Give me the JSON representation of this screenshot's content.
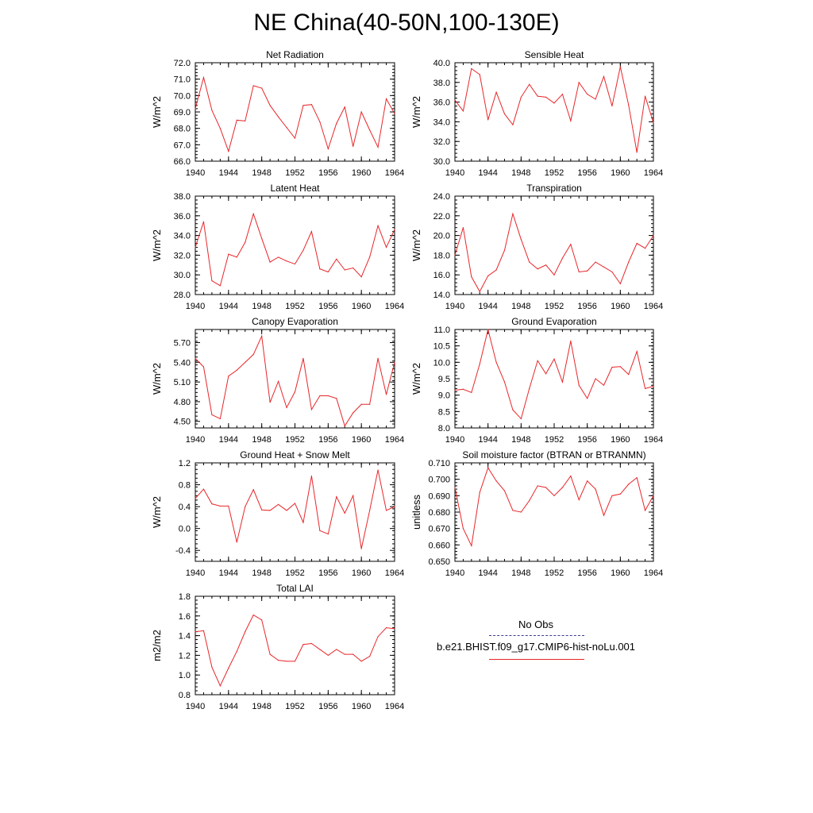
{
  "title": "NE China(40-50N,100-130E)",
  "colors": {
    "model": "#e8262a",
    "obs": "#3b3b8f",
    "axis": "#000000"
  },
  "legend": {
    "obs_label": "No Obs",
    "model_label": "b.e21.BHIST.f09_g17.CMIP6-hist-noLu.001"
  },
  "chart_data": [
    {
      "type": "line",
      "title": "Net Radiation",
      "ylabel": "W/m^2",
      "xlabel": "",
      "ylim": [
        66.0,
        72.0
      ],
      "yticks": [
        66.0,
        67.0,
        68.0,
        69.0,
        70.0,
        71.0,
        72.0
      ],
      "ydec": 1,
      "xlim": [
        1940,
        1964
      ],
      "xticks": [
        1940,
        1944,
        1948,
        1952,
        1956,
        1960,
        1964
      ],
      "x": [
        1940,
        1941,
        1942,
        1943,
        1944,
        1945,
        1946,
        1947,
        1948,
        1949,
        1950,
        1951,
        1952,
        1953,
        1954,
        1955,
        1956,
        1957,
        1958,
        1959,
        1960,
        1961,
        1962,
        1963,
        1964
      ],
      "series": [
        {
          "values": [
            69.2,
            71.1,
            69.1,
            68.0,
            66.6,
            68.5,
            68.45,
            70.6,
            70.45,
            69.4,
            68.7,
            68.05,
            67.4,
            69.4,
            69.45,
            68.4,
            66.75,
            68.3,
            69.3,
            66.9,
            69.0,
            67.9,
            66.85,
            69.8,
            68.9
          ]
        }
      ]
    },
    {
      "type": "line",
      "title": "Sensible Heat",
      "ylabel": "W/m^2",
      "xlabel": "",
      "ylim": [
        30.0,
        40.0
      ],
      "yticks": [
        30.0,
        32.0,
        34.0,
        36.0,
        38.0,
        40.0
      ],
      "ydec": 1,
      "xlim": [
        1940,
        1964
      ],
      "xticks": [
        1940,
        1944,
        1948,
        1952,
        1956,
        1960,
        1964
      ],
      "x": [
        1940,
        1941,
        1942,
        1943,
        1944,
        1945,
        1946,
        1947,
        1948,
        1949,
        1950,
        1951,
        1952,
        1953,
        1954,
        1955,
        1956,
        1957,
        1958,
        1959,
        1960,
        1961,
        1962,
        1963,
        1964
      ],
      "series": [
        {
          "values": [
            36.2,
            35.1,
            39.4,
            38.8,
            34.2,
            37.0,
            34.8,
            33.7,
            36.5,
            37.8,
            36.6,
            36.5,
            35.9,
            36.8,
            34.1,
            38.0,
            36.8,
            36.3,
            38.6,
            35.6,
            39.6,
            35.7,
            30.9,
            36.6,
            33.9
          ]
        }
      ]
    },
    {
      "type": "line",
      "title": "Latent Heat",
      "ylabel": "W/m^2",
      "xlabel": "",
      "ylim": [
        28.0,
        38.0
      ],
      "yticks": [
        28.0,
        30.0,
        32.0,
        34.0,
        36.0,
        38.0
      ],
      "ydec": 1,
      "xlim": [
        1940,
        1964
      ],
      "xticks": [
        1940,
        1944,
        1948,
        1952,
        1956,
        1960,
        1964
      ],
      "x": [
        1940,
        1941,
        1942,
        1943,
        1944,
        1945,
        1946,
        1947,
        1948,
        1949,
        1950,
        1951,
        1952,
        1953,
        1954,
        1955,
        1956,
        1957,
        1958,
        1959,
        1960,
        1961,
        1962,
        1963,
        1964
      ],
      "series": [
        {
          "values": [
            32.8,
            35.4,
            29.4,
            28.9,
            32.1,
            31.8,
            33.3,
            36.2,
            33.7,
            31.3,
            31.8,
            31.4,
            31.1,
            32.5,
            34.4,
            30.6,
            30.3,
            31.6,
            30.5,
            30.7,
            29.8,
            31.8,
            35.0,
            32.8,
            34.6
          ]
        }
      ]
    },
    {
      "type": "line",
      "title": "Transpiration",
      "ylabel": "W/m^2",
      "xlabel": "",
      "ylim": [
        14.0,
        24.0
      ],
      "yticks": [
        14.0,
        16.0,
        18.0,
        20.0,
        22.0,
        24.0
      ],
      "ydec": 1,
      "xlim": [
        1940,
        1964
      ],
      "xticks": [
        1940,
        1944,
        1948,
        1952,
        1956,
        1960,
        1964
      ],
      "x": [
        1940,
        1941,
        1942,
        1943,
        1944,
        1945,
        1946,
        1947,
        1948,
        1949,
        1950,
        1951,
        1952,
        1953,
        1954,
        1955,
        1956,
        1957,
        1958,
        1959,
        1960,
        1961,
        1962,
        1963,
        1964
      ],
      "series": [
        {
          "values": [
            18.0,
            20.8,
            15.8,
            14.3,
            15.9,
            16.5,
            18.5,
            22.2,
            19.6,
            17.3,
            16.6,
            17.0,
            16.0,
            17.7,
            19.1,
            16.3,
            16.4,
            17.3,
            16.8,
            16.3,
            15.1,
            17.3,
            19.2,
            18.7,
            20.0
          ]
        }
      ]
    },
    {
      "type": "line",
      "title": "Canopy Evaporation",
      "ylabel": "W/m^2",
      "xlabel": "",
      "ylim": [
        4.4,
        5.9
      ],
      "yticks": [
        4.5,
        4.8,
        5.1,
        5.4,
        5.7
      ],
      "ydec": 2,
      "xlim": [
        1940,
        1964
      ],
      "xticks": [
        1940,
        1944,
        1948,
        1952,
        1956,
        1960,
        1964
      ],
      "x": [
        1940,
        1941,
        1942,
        1943,
        1944,
        1945,
        1946,
        1947,
        1948,
        1949,
        1950,
        1951,
        1952,
        1953,
        1954,
        1955,
        1956,
        1957,
        1958,
        1959,
        1960,
        1961,
        1962,
        1963,
        1964
      ],
      "series": [
        {
          "values": [
            5.46,
            5.33,
            4.6,
            4.54,
            5.19,
            5.28,
            5.4,
            5.52,
            5.8,
            4.79,
            5.11,
            4.71,
            4.95,
            5.46,
            4.68,
            4.89,
            4.89,
            4.85,
            4.43,
            4.63,
            4.76,
            4.76,
            5.46,
            4.91,
            5.4
          ]
        }
      ]
    },
    {
      "type": "line",
      "title": "Ground Evaporation",
      "ylabel": "W/m^2",
      "xlabel": "",
      "ylim": [
        8.0,
        11.0
      ],
      "yticks": [
        8.0,
        8.5,
        9.0,
        9.5,
        10.0,
        10.5,
        11.0
      ],
      "ydec": 1,
      "xlim": [
        1940,
        1964
      ],
      "xticks": [
        1940,
        1944,
        1948,
        1952,
        1956,
        1960,
        1964
      ],
      "x": [
        1940,
        1941,
        1942,
        1943,
        1944,
        1945,
        1946,
        1947,
        1948,
        1949,
        1950,
        1951,
        1952,
        1953,
        1954,
        1955,
        1956,
        1957,
        1958,
        1959,
        1960,
        1961,
        1962,
        1963,
        1964
      ],
      "series": [
        {
          "values": [
            9.15,
            9.18,
            9.08,
            9.95,
            11.0,
            10.0,
            9.4,
            8.55,
            8.28,
            9.2,
            10.05,
            9.65,
            10.1,
            9.4,
            10.65,
            9.3,
            8.9,
            9.5,
            9.3,
            9.85,
            9.87,
            9.63,
            10.33,
            9.2,
            9.27
          ]
        }
      ]
    },
    {
      "type": "line",
      "title": "Ground Heat + Snow Melt",
      "ylabel": "W/m^2",
      "xlabel": "",
      "ylim": [
        -0.6,
        1.2
      ],
      "yticks": [
        -0.4,
        0.0,
        0.4,
        0.8,
        1.2
      ],
      "ydec": 1,
      "xlim": [
        1940,
        1964
      ],
      "xticks": [
        1940,
        1944,
        1948,
        1952,
        1956,
        1960,
        1964
      ],
      "x": [
        1940,
        1941,
        1942,
        1943,
        1944,
        1945,
        1946,
        1947,
        1948,
        1949,
        1950,
        1951,
        1952,
        1953,
        1954,
        1955,
        1956,
        1957,
        1958,
        1959,
        1960,
        1961,
        1962,
        1963,
        1964
      ],
      "series": [
        {
          "values": [
            0.55,
            0.72,
            0.45,
            0.41,
            0.41,
            -0.25,
            0.4,
            0.71,
            0.34,
            0.33,
            0.44,
            0.33,
            0.46,
            0.11,
            0.96,
            -0.04,
            -0.1,
            0.58,
            0.28,
            0.6,
            -0.37,
            0.33,
            1.07,
            0.33,
            0.4
          ]
        }
      ]
    },
    {
      "type": "line",
      "title": "Soil moisture factor (BTRAN or BTRANMN)",
      "ylabel": "unitless",
      "xlabel": "",
      "ylim": [
        0.65,
        0.71
      ],
      "yticks": [
        0.65,
        0.66,
        0.67,
        0.68,
        0.69,
        0.7,
        0.71
      ],
      "ydec": 3,
      "xlim": [
        1940,
        1964
      ],
      "xticks": [
        1940,
        1944,
        1948,
        1952,
        1956,
        1960,
        1964
      ],
      "x": [
        1940,
        1941,
        1942,
        1943,
        1944,
        1945,
        1946,
        1947,
        1948,
        1949,
        1950,
        1951,
        1952,
        1953,
        1954,
        1955,
        1956,
        1957,
        1958,
        1959,
        1960,
        1961,
        1962,
        1963,
        1964
      ],
      "series": [
        {
          "values": [
            0.695,
            0.67,
            0.6595,
            0.692,
            0.707,
            0.699,
            0.693,
            0.681,
            0.68,
            0.687,
            0.696,
            0.695,
            0.69,
            0.695,
            0.702,
            0.6875,
            0.699,
            0.694,
            0.678,
            0.69,
            0.691,
            0.697,
            0.701,
            0.681,
            0.69
          ]
        }
      ]
    },
    {
      "type": "line",
      "title": "Total LAI",
      "ylabel": "m2/m2",
      "xlabel": "",
      "ylim": [
        0.8,
        1.8
      ],
      "yticks": [
        0.8,
        1.0,
        1.2,
        1.4,
        1.6,
        1.8
      ],
      "ydec": 1,
      "xlim": [
        1940,
        1964
      ],
      "xticks": [
        1940,
        1944,
        1948,
        1952,
        1956,
        1960,
        1964
      ],
      "x": [
        1940,
        1941,
        1942,
        1943,
        1944,
        1945,
        1946,
        1947,
        1948,
        1949,
        1950,
        1951,
        1952,
        1953,
        1954,
        1955,
        1956,
        1957,
        1958,
        1959,
        1960,
        1961,
        1962,
        1963,
        1964
      ],
      "series": [
        {
          "values": [
            1.44,
            1.45,
            1.08,
            0.89,
            1.07,
            1.24,
            1.44,
            1.61,
            1.56,
            1.21,
            1.15,
            1.14,
            1.14,
            1.31,
            1.32,
            1.26,
            1.2,
            1.26,
            1.21,
            1.21,
            1.14,
            1.19,
            1.39,
            1.48,
            1.47
          ]
        }
      ]
    }
  ]
}
